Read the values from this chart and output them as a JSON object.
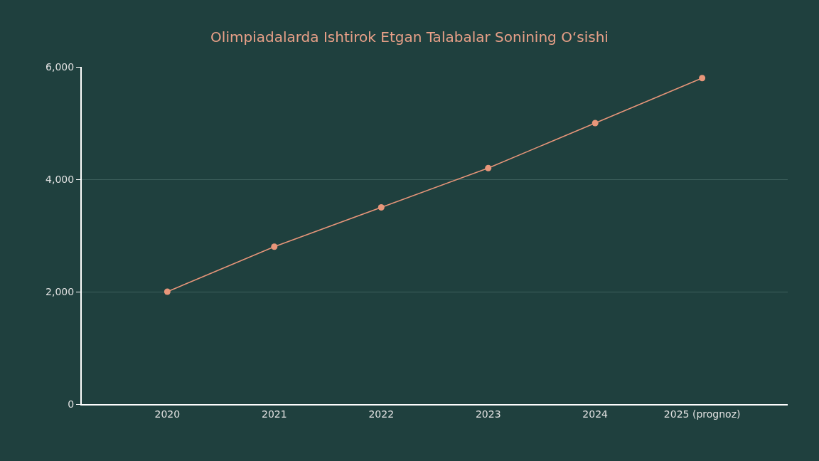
{
  "chart_data": {
    "type": "line",
    "title": "Olimpiadalarda Ishtirok Etgan Talabalar Sonining O‘sishi",
    "categories": [
      "2020",
      "2021",
      "2022",
      "2023",
      "2024",
      "2025 (prognoz)"
    ],
    "series": [
      {
        "color": "#e8967a",
        "values": [
          2000,
          2800,
          3500,
          4200,
          5000,
          5800
        ]
      }
    ],
    "ylim": [
      0,
      6000
    ],
    "yticks": [
      {
        "value": 0,
        "label": "0"
      },
      {
        "value": 2000,
        "label": "2,000"
      },
      {
        "value": 4000,
        "label": "4,000"
      },
      {
        "value": 6000,
        "label": "6,000"
      }
    ],
    "grid": "y",
    "marker": "circle",
    "line_style": "solid"
  }
}
